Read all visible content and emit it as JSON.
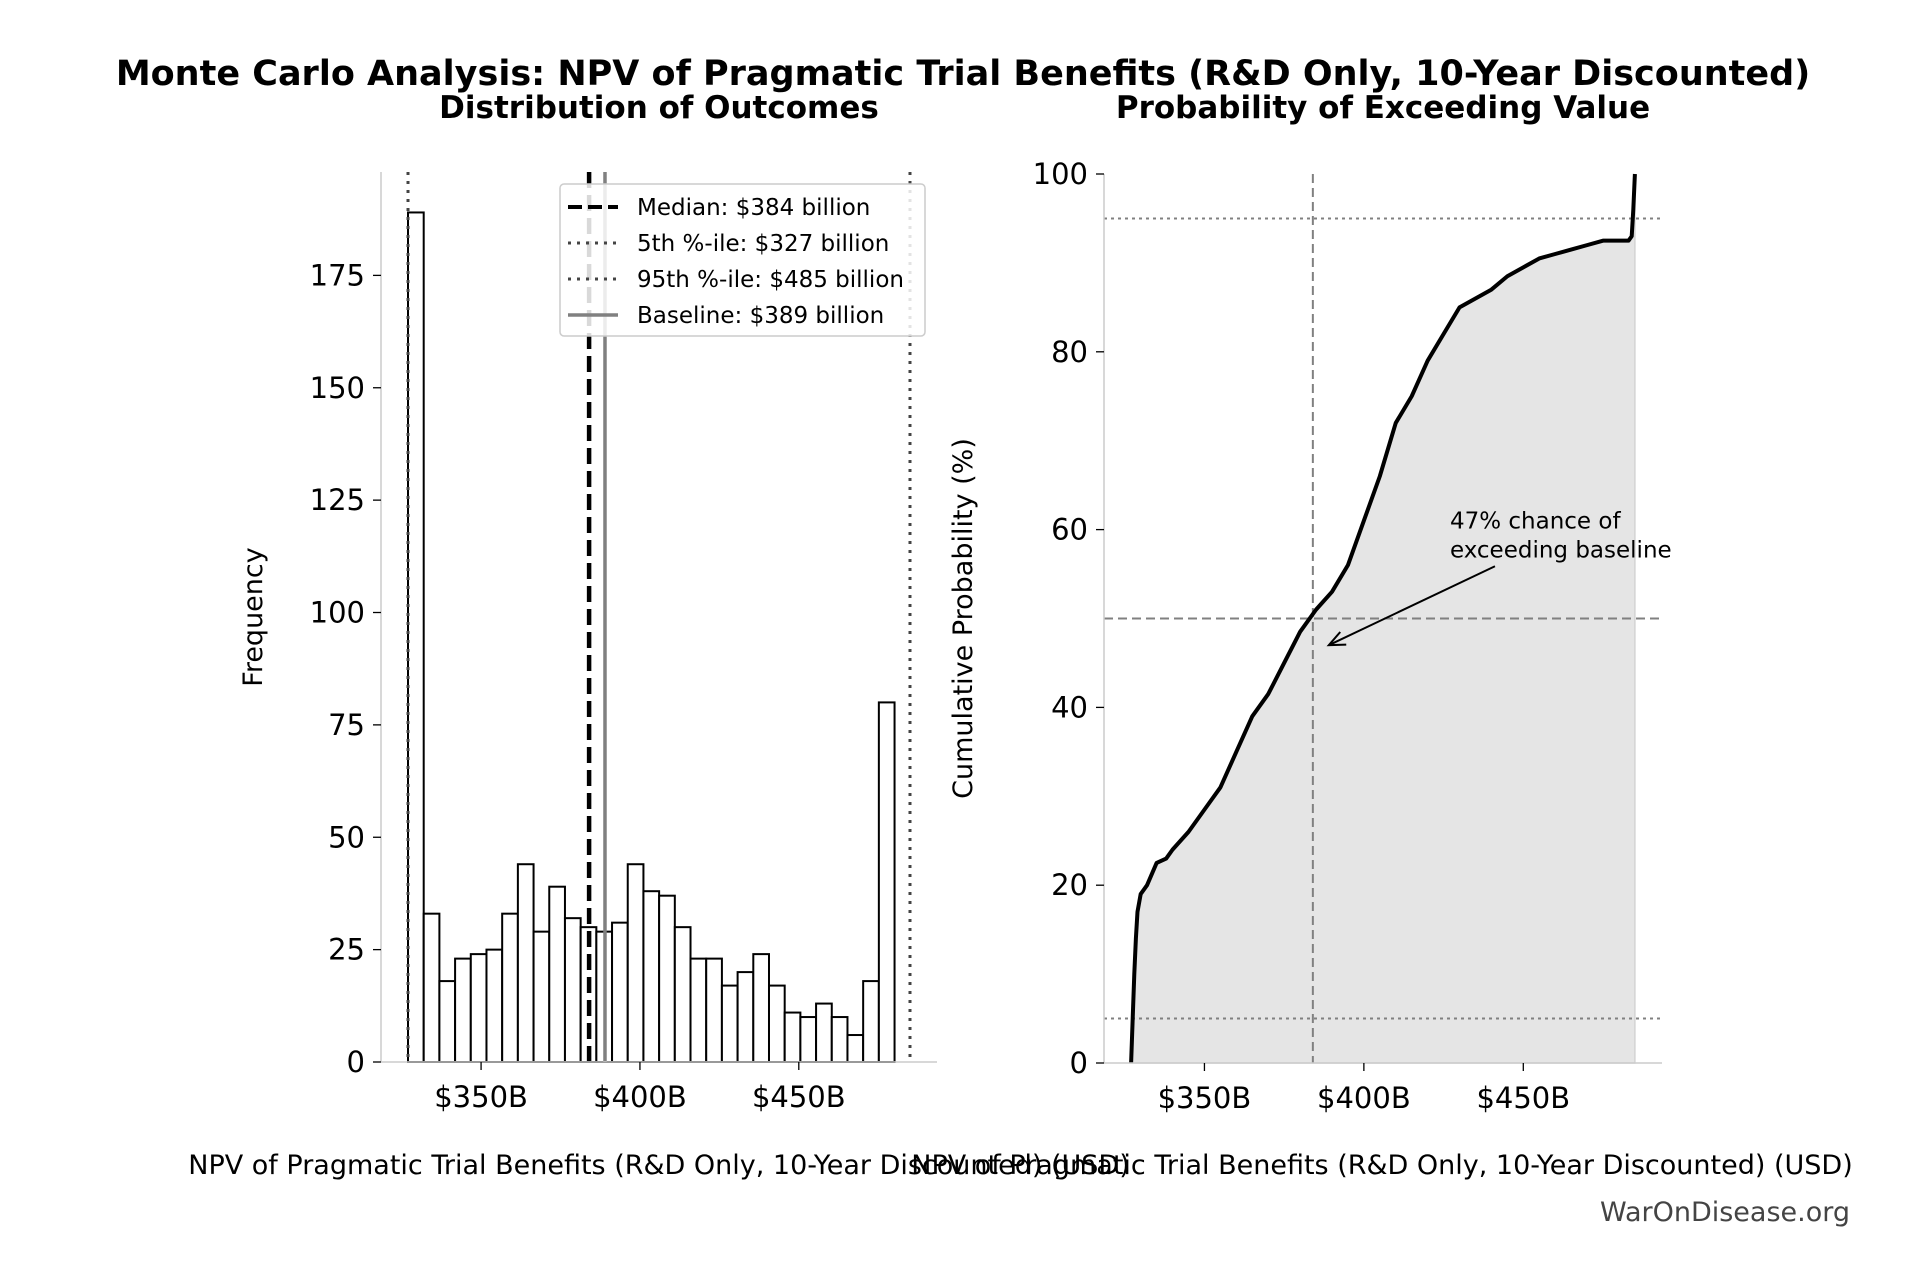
{
  "title": "Monte Carlo Analysis: NPV of Pragmatic Trial Benefits (R&D Only, 10-Year Discounted)",
  "watermark": "WarOnDisease.org",
  "colors": {
    "bar_edge": "#000000",
    "median_line": "#000000",
    "percentile_line": "#444444",
    "baseline_line": "#808080",
    "cdf_line": "#000000",
    "cdf_fill": "#e5e5e5",
    "reference_line": "#808080",
    "axis": "#cccccc"
  },
  "chart_data": [
    {
      "type": "bar",
      "subtitle": "Distribution of Outcomes",
      "xlabel": "NPV of Pragmatic Trial Benefits (R&D Only, 10-Year Discounted) (USD)",
      "ylabel": "Frequency",
      "xlim": [
        318.5,
        493.5
      ],
      "ylim": [
        0,
        198
      ],
      "x_ticks": [
        350,
        400,
        450
      ],
      "x_tick_labels": [
        "$350B",
        "$400B",
        "$450B"
      ],
      "y_ticks": [
        0,
        25,
        50,
        75,
        100,
        125,
        150,
        175
      ],
      "y_tick_labels": [
        "0",
        "25",
        "50",
        "75",
        "100",
        "125",
        "150",
        "175"
      ],
      "bin_start": 327,
      "bin_width": 4.94,
      "values": [
        189,
        33,
        18,
        23,
        24,
        25,
        33,
        44,
        29,
        39,
        32,
        30,
        29,
        31,
        44,
        38,
        37,
        30,
        23,
        23,
        17,
        20,
        24,
        17,
        11,
        10,
        13,
        10,
        6,
        18,
        80
      ],
      "grid": false,
      "legend_position": "top-right",
      "legend": [
        {
          "label": "Median: $384 billion",
          "style": "dashed"
        },
        {
          "label": "5th %-ile: $327 billion",
          "style": "dotted"
        },
        {
          "label": "95th %-ile: $485 billion",
          "style": "dotted"
        },
        {
          "label": "Baseline: $389 billion",
          "style": "solid"
        }
      ],
      "reference_lines": {
        "median": 384,
        "p5": 327,
        "p95": 485,
        "baseline": 389
      }
    },
    {
      "type": "area",
      "subtitle": "Probability of Exceeding Value",
      "xlabel": "NPV of Pragmatic Trial Benefits (R&D Only, 10-Year Discounted) (USD)",
      "ylabel": "Cumulative Probability (%)",
      "xlim": [
        318.5,
        493.5
      ],
      "ylim": [
        0,
        100
      ],
      "x_ticks": [
        350,
        400,
        450
      ],
      "x_tick_labels": [
        "$350B",
        "$400B",
        "$450B"
      ],
      "y_ticks": [
        0,
        20,
        40,
        60,
        80,
        100
      ],
      "y_tick_labels": [
        "0",
        "20",
        "40",
        "60",
        "80",
        "100"
      ],
      "grid": false,
      "x": [
        327,
        327.5,
        328,
        328.5,
        329,
        330,
        332,
        335,
        338,
        340,
        345,
        350,
        355,
        360,
        365,
        370,
        375,
        380,
        385,
        390,
        395,
        400,
        405,
        410,
        415,
        420,
        425,
        430,
        435,
        440,
        445,
        450,
        455,
        460,
        465,
        470,
        475,
        480,
        483,
        484,
        484.5,
        485
      ],
      "y": [
        0,
        5,
        10,
        14,
        17,
        19,
        20,
        22.5,
        23,
        24,
        26,
        28.5,
        31,
        35,
        39,
        41.5,
        45,
        48.5,
        51,
        53,
        56,
        61,
        66,
        72,
        75,
        79,
        82,
        85,
        86,
        87,
        88.5,
        89.5,
        90.5,
        91,
        91.5,
        92,
        92.5,
        92.5,
        92.5,
        93,
        96,
        100
      ],
      "reference_lines": {
        "vertical": 384,
        "horizontal": [
          50,
          5,
          95
        ]
      },
      "annotation": {
        "text_lines": [
          "47% chance of",
          "exceeding baseline"
        ],
        "arrow_to": {
          "x": 389,
          "y": 47
        },
        "text_at": {
          "x": 427,
          "y": 57
        }
      }
    }
  ]
}
